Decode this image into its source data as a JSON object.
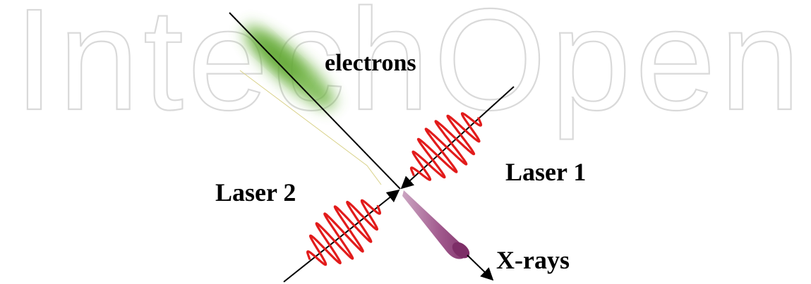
{
  "watermark": {
    "text": "IntechOpen",
    "color": "#d9d9d9"
  },
  "labels": {
    "electrons": "electrons",
    "laser1": "Laser 1",
    "laser2": "Laser 2",
    "xrays": "X-rays"
  },
  "colors": {
    "background": "#ffffff",
    "lines": "#000000",
    "laser_pulse": "#e21b1b",
    "electron_bunch": "#6db33f",
    "xray_beam": "#9b4f86",
    "text": "#000000"
  },
  "icons": {
    "laser1": "laser-pulse-wave",
    "laser2": "laser-pulse-wave",
    "electrons": "electron-bunch-glow",
    "xrays": "xray-beam-cone"
  }
}
